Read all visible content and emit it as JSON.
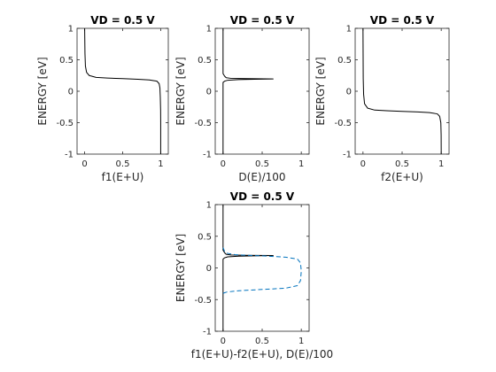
{
  "chart_data": [
    {
      "type": "line",
      "title": "VD = 0.5 V",
      "xlabel": "f1(E+U)",
      "ylabel": "ENERGY  [eV]",
      "xlim": [
        -0.1,
        1.1
      ],
      "ylim": [
        -1,
        1
      ],
      "xticks": [
        "0",
        "0.5",
        "1"
      ],
      "yticks": [
        "1",
        "0.5",
        "0",
        "-0.5",
        "-1"
      ],
      "xtick_values": [
        0,
        0.5,
        1
      ],
      "ytick_values": [
        1,
        0.5,
        0,
        -0.5,
        -1
      ],
      "grid": false,
      "series": [
        {
          "color": "#000000",
          "dash": "solid",
          "points": [
            [
              1,
              -1
            ],
            [
              1,
              -0.5
            ],
            [
              0.999,
              -0.3
            ],
            [
              0.995,
              -0.1
            ],
            [
              0.99,
              0.05
            ],
            [
              0.98,
              0.12
            ],
            [
              0.95,
              0.16
            ],
            [
              0.85,
              0.18
            ],
            [
              0.7,
              0.19
            ],
            [
              0.5,
              0.2
            ],
            [
              0.3,
              0.21
            ],
            [
              0.15,
              0.22
            ],
            [
              0.06,
              0.25
            ],
            [
              0.025,
              0.3
            ],
            [
              0.01,
              0.4
            ],
            [
              0.004,
              0.6
            ],
            [
              0,
              1
            ]
          ]
        }
      ]
    },
    {
      "type": "line",
      "title": "VD = 0.5 V",
      "xlabel": "D(E)/100",
      "ylabel": "ENERGY  [eV]",
      "xlim": [
        -0.1,
        1.1
      ],
      "ylim": [
        -1,
        1
      ],
      "xticks": [
        "0",
        "0.5",
        "1"
      ],
      "yticks": [
        "1",
        "0.5",
        "0",
        "-0.5",
        "-1"
      ],
      "xtick_values": [
        0,
        0.5,
        1
      ],
      "ytick_values": [
        1,
        0.5,
        0,
        -0.5,
        -1
      ],
      "grid": false,
      "series": [
        {
          "color": "#000000",
          "dash": "solid",
          "points": [
            [
              0,
              -1
            ],
            [
              0,
              0.14
            ],
            [
              0.02,
              0.16
            ],
            [
              0.06,
              0.175
            ],
            [
              0.2,
              0.185
            ],
            [
              0.4,
              0.19
            ],
            [
              0.64,
              0.195
            ],
            [
              0.3,
              0.2
            ],
            [
              0.1,
              0.205
            ],
            [
              0.04,
              0.215
            ],
            [
              0.02,
              0.24
            ],
            [
              0,
              0.28
            ],
            [
              0,
              1
            ]
          ]
        }
      ]
    },
    {
      "type": "line",
      "title": "VD = 0.5 V",
      "xlabel": "f2(E+U)",
      "ylabel": "ENERGY  [eV]",
      "xlim": [
        -0.1,
        1.1
      ],
      "ylim": [
        -1,
        1
      ],
      "xticks": [
        "0",
        "0.5",
        "1"
      ],
      "yticks": [
        "1",
        "0.5",
        "0",
        "-0.5",
        "-1"
      ],
      "xtick_values": [
        0,
        0.5,
        1
      ],
      "ytick_values": [
        1,
        0.5,
        0,
        -0.5,
        -1
      ],
      "grid": false,
      "series": [
        {
          "color": "#000000",
          "dash": "solid",
          "points": [
            [
              1,
              -1
            ],
            [
              0.999,
              -0.7
            ],
            [
              0.995,
              -0.5
            ],
            [
              0.98,
              -0.4
            ],
            [
              0.95,
              -0.36
            ],
            [
              0.85,
              -0.34
            ],
            [
              0.7,
              -0.33
            ],
            [
              0.5,
              -0.32
            ],
            [
              0.3,
              -0.31
            ],
            [
              0.15,
              -0.3
            ],
            [
              0.06,
              -0.27
            ],
            [
              0.02,
              -0.2
            ],
            [
              0.008,
              -0.05
            ],
            [
              0.003,
              0.2
            ],
            [
              0,
              1
            ]
          ]
        }
      ]
    },
    {
      "type": "line",
      "title": "VD = 0.5 V",
      "xlabel": "f1(E+U)-f2(E+U), D(E)/100",
      "ylabel": "ENERGY  [eV]",
      "xlim": [
        -0.1,
        1.1
      ],
      "ylim": [
        -1,
        1
      ],
      "xticks": [
        "0",
        "0.5",
        "1"
      ],
      "yticks": [
        "1",
        "0.5",
        "0",
        "-0.5",
        "-1"
      ],
      "xtick_values": [
        0,
        0.5,
        1
      ],
      "ytick_values": [
        1,
        0.5,
        0,
        -0.5,
        -1
      ],
      "grid": false,
      "series": [
        {
          "color": "#000000",
          "dash": "solid",
          "points": [
            [
              0,
              -1
            ],
            [
              0,
              0.14
            ],
            [
              0.02,
              0.16
            ],
            [
              0.06,
              0.175
            ],
            [
              0.2,
              0.185
            ],
            [
              0.4,
              0.19
            ],
            [
              0.64,
              0.195
            ],
            [
              0.3,
              0.2
            ],
            [
              0.1,
              0.205
            ],
            [
              0.04,
              0.215
            ],
            [
              0.02,
              0.24
            ],
            [
              0,
              0.28
            ],
            [
              0,
              1
            ]
          ]
        },
        {
          "color": "#0072bd",
          "dash": "dashed",
          "points": [
            [
              0,
              -0.4
            ],
            [
              0.05,
              -0.38
            ],
            [
              0.2,
              -0.36
            ],
            [
              0.5,
              -0.34
            ],
            [
              0.8,
              -0.32
            ],
            [
              0.95,
              -0.28
            ],
            [
              0.99,
              -0.2
            ],
            [
              1,
              -0.05
            ],
            [
              0.99,
              0.08
            ],
            [
              0.95,
              0.14
            ],
            [
              0.8,
              0.17
            ],
            [
              0.5,
              0.19
            ],
            [
              0.3,
              0.2
            ],
            [
              0.15,
              0.21
            ],
            [
              0.06,
              0.23
            ],
            [
              0.02,
              0.26
            ],
            [
              0,
              0.32
            ]
          ]
        }
      ]
    }
  ]
}
